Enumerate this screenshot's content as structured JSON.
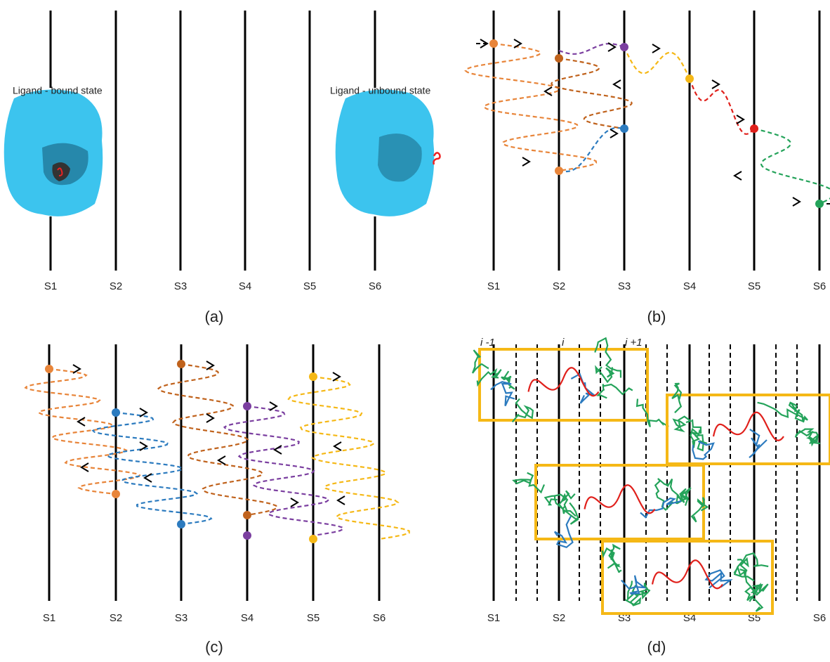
{
  "panels": [
    {
      "label": "(a)",
      "surfaces": [
        "S1",
        "S2",
        "S3",
        "S4",
        "S5",
        "S6"
      ],
      "annotations": [
        "Ligand - bound state",
        "Ligand - unbound state"
      ]
    },
    {
      "label": "(b)",
      "surfaces": [
        "S1",
        "S2",
        "S3",
        "S4",
        "S5",
        "S6"
      ]
    },
    {
      "label": "(c)",
      "surfaces": [
        "S1",
        "S2",
        "S3",
        "S4",
        "S5",
        "S6"
      ]
    },
    {
      "label": "(d)",
      "surfaces": [
        "S1",
        "S2",
        "S3",
        "S4",
        "S5",
        "S6"
      ],
      "indices": [
        "i -1",
        "i",
        "i +1"
      ]
    }
  ]
}
